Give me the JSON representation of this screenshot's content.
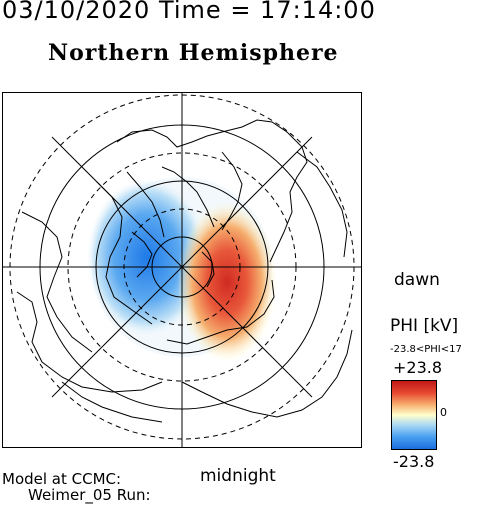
{
  "header": {
    "timestamp": "03/10/2020 Time = 17:14:00",
    "hemisphere_title": "Northern Hemisphere"
  },
  "map": {
    "local_time_labels": {
      "dawn": "dawn",
      "midnight": "midnight"
    },
    "potential_pattern": {
      "dusk_cell_color": "#1f7ae8",
      "dawn_cell_color": "#d83a2a"
    }
  },
  "legend": {
    "title": "PHI [kV]",
    "range_text": "-23.8<PHI<17",
    "max_label": "+23.8",
    "zero_label": "0",
    "min_label": "-23.8",
    "colors": {
      "max": "#c01818",
      "mid": "#ffffcc",
      "min": "#1a6ee0"
    }
  },
  "footer": {
    "model_line1": "Model at CCMC:",
    "model_line2": "Weimer_05 Run:"
  }
}
